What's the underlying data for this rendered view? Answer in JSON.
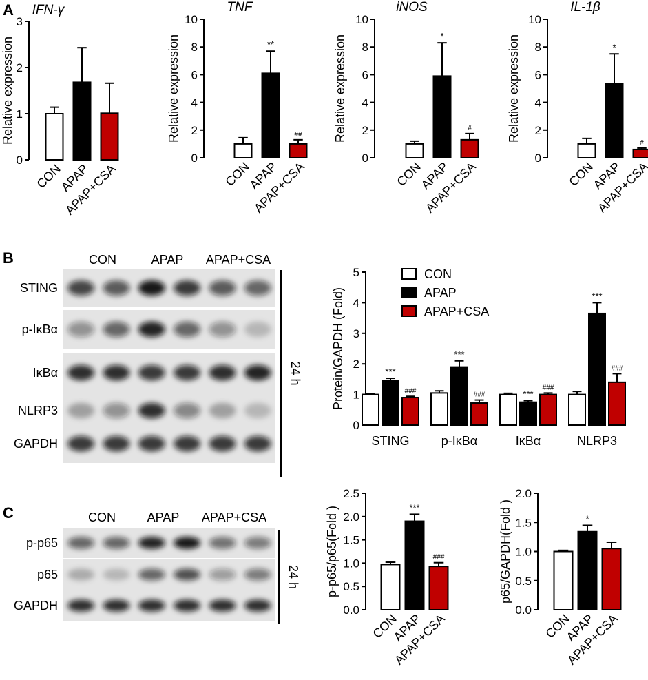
{
  "colors": {
    "con": "#ffffff",
    "apap": "#000000",
    "csa": "#c00000"
  },
  "panel_labels": {
    "a": "A",
    "b": "B",
    "c": "C"
  },
  "blot_b": {
    "groups": [
      "CON",
      "APAP",
      "APAP+CSA"
    ],
    "rows": [
      "STING",
      "p-IκBα",
      "IκBα",
      "NLRP3",
      "GAPDH"
    ],
    "time": "24 h",
    "intensity": [
      [
        0.75,
        0.65,
        0.95,
        0.8,
        0.65,
        0.6
      ],
      [
        0.4,
        0.6,
        0.9,
        0.6,
        0.4,
        0.2
      ],
      [
        0.85,
        0.85,
        0.8,
        0.8,
        0.85,
        0.9
      ],
      [
        0.3,
        0.4,
        0.85,
        0.45,
        0.3,
        0.2
      ],
      [
        0.8,
        0.8,
        0.8,
        0.8,
        0.8,
        0.8
      ]
    ]
  },
  "blot_c": {
    "groups": [
      "CON",
      "APAP",
      "APAP+CSA"
    ],
    "rows": [
      "p-p65",
      "p65",
      "GAPDH"
    ],
    "time": "24 h",
    "intensity": [
      [
        0.6,
        0.6,
        0.9,
        0.95,
        0.55,
        0.5
      ],
      [
        0.25,
        0.2,
        0.6,
        0.7,
        0.35,
        0.5
      ],
      [
        0.85,
        0.85,
        0.85,
        0.85,
        0.85,
        0.85
      ]
    ]
  },
  "chart_data": [
    {
      "type": "bar",
      "title": "IFN-γ",
      "ylabel": "Relative expression",
      "ylim": [
        0,
        3
      ],
      "yticks": [
        "0",
        "1",
        "2",
        "3"
      ],
      "categories": [
        "CON",
        "APAP",
        "APAP+CSA"
      ],
      "values": [
        1.0,
        1.68,
        1.01
      ],
      "errors": [
        0.14,
        0.75,
        0.65
      ],
      "annotations": [
        "",
        "",
        ""
      ]
    },
    {
      "type": "bar",
      "title": "TNF",
      "ylabel": "Relative expression",
      "ylim": [
        0,
        10
      ],
      "yticks": [
        "0",
        "2",
        "4",
        "6",
        "8",
        "10"
      ],
      "categories": [
        "CON",
        "APAP",
        "APAP+CSA"
      ],
      "values": [
        1.0,
        6.1,
        1.0
      ],
      "errors": [
        0.45,
        1.6,
        0.3
      ],
      "annotations": [
        "",
        "**",
        "##"
      ]
    },
    {
      "type": "bar",
      "title": "iNOS",
      "ylabel": "Relative expression",
      "ylim": [
        0,
        10
      ],
      "yticks": [
        "0",
        "2",
        "4",
        "6",
        "8",
        "10"
      ],
      "categories": [
        "CON",
        "APAP",
        "APAP+CSA"
      ],
      "values": [
        1.0,
        5.9,
        1.3
      ],
      "errors": [
        0.2,
        2.4,
        0.45
      ],
      "annotations": [
        "",
        "*",
        "#"
      ]
    },
    {
      "type": "bar",
      "title": "IL-1β",
      "ylabel": "Relative expression",
      "ylim": [
        0,
        10
      ],
      "yticks": [
        "0",
        "2",
        "4",
        "6",
        "8",
        "10"
      ],
      "categories": [
        "CON",
        "APAP",
        "APAP+CSA"
      ],
      "values": [
        1.0,
        5.35,
        0.6
      ],
      "errors": [
        0.4,
        2.15,
        0.1
      ],
      "annotations": [
        "",
        "*",
        "#"
      ]
    },
    {
      "type": "bar",
      "title": "",
      "ylabel": "Protein/GAPDH (Fold)",
      "ylim": [
        0,
        5
      ],
      "yticks": [
        "0",
        "1",
        "2",
        "3",
        "4",
        "5"
      ],
      "categories": [
        "STING",
        "p-IκBα",
        "IκBα",
        "NLRP3"
      ],
      "series": [
        {
          "name": "CON",
          "values": [
            1.0,
            1.05,
            1.0,
            1.0
          ],
          "errors": [
            0.03,
            0.07,
            0.04,
            0.1
          ],
          "annotations": [
            "",
            "",
            "",
            ""
          ]
        },
        {
          "name": "APAP",
          "values": [
            1.45,
            1.9,
            0.75,
            3.65
          ],
          "errors": [
            0.08,
            0.2,
            0.05,
            0.35
          ],
          "annotations": [
            "***",
            "***",
            "***",
            "***"
          ]
        },
        {
          "name": "APAP+CSA",
          "values": [
            0.9,
            0.72,
            1.0,
            1.4
          ],
          "errors": [
            0.04,
            0.1,
            0.05,
            0.28
          ],
          "annotations": [
            "###",
            "###",
            "###",
            "###"
          ]
        }
      ],
      "legend": "top-right"
    },
    {
      "type": "bar",
      "title": "",
      "ylabel": "p-p65/p65(Fold )",
      "ylim": [
        0,
        2.5
      ],
      "yticks": [
        "0.0",
        "0.5",
        "1.0",
        "1.5",
        "2.0",
        "2.5"
      ],
      "categories": [
        "CON",
        "APAP",
        "APAP+CSA"
      ],
      "values": [
        0.97,
        1.9,
        0.93
      ],
      "errors": [
        0.05,
        0.15,
        0.08
      ],
      "annotations": [
        "",
        "***",
        "###"
      ]
    },
    {
      "type": "bar",
      "title": "",
      "ylabel": "p65/GAPDH(Fold )",
      "ylim": [
        0,
        2.0
      ],
      "yticks": [
        "0.0",
        "0.5",
        "1.0",
        "1.5",
        "2.0"
      ],
      "categories": [
        "CON",
        "APAP",
        "APAP+CSA"
      ],
      "values": [
        1.0,
        1.34,
        1.05
      ],
      "errors": [
        0.02,
        0.11,
        0.11
      ],
      "annotations": [
        "",
        "*",
        ""
      ]
    }
  ]
}
